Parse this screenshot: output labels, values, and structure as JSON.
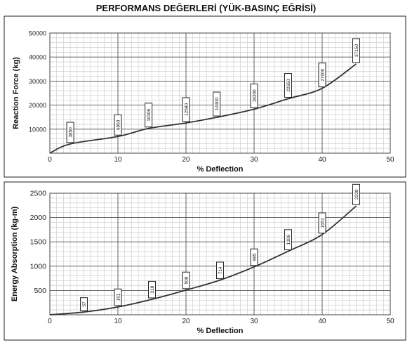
{
  "page": {
    "title": "PERFORMANS DEĞERLERİ (YÜK-BASINÇ EĞRİSİ)"
  },
  "chart_data": [
    {
      "type": "line",
      "xlabel": "% Deflection",
      "ylabel": "Reaction Force (kg)",
      "xlim": [
        0,
        50
      ],
      "ylim": [
        0,
        50000
      ],
      "xticks": [
        "0",
        "10",
        "20",
        "30",
        "40",
        "50"
      ],
      "yticks": [
        "10000",
        "20000",
        "30000",
        "40000",
        "50000"
      ],
      "grid": true,
      "series": [
        {
          "x": [
            0,
            3,
            10,
            14.5,
            20,
            24.5,
            30,
            35,
            40,
            45
          ],
          "values": [
            0,
            3850,
            6950,
            10300,
            12580,
            14900,
            18300,
            22650,
            27000,
            37150
          ]
        }
      ],
      "annotations": [
        {
          "x": 3,
          "y": 3850,
          "label": "3850"
        },
        {
          "x": 10,
          "y": 6950,
          "label": "6950"
        },
        {
          "x": 14.5,
          "y": 10300,
          "label": "10300"
        },
        {
          "x": 20,
          "y": 12580,
          "label": "12580"
        },
        {
          "x": 24.5,
          "y": 14900,
          "label": "14900"
        },
        {
          "x": 30,
          "y": 18300,
          "label": "18300"
        },
        {
          "x": 35,
          "y": 22650,
          "label": "22650"
        },
        {
          "x": 40,
          "y": 27000,
          "label": "27000"
        },
        {
          "x": 45,
          "y": 37150,
          "label": "37150"
        }
      ]
    },
    {
      "type": "line",
      "xlabel": "% Deflection",
      "ylabel": "Energy Absorption (kg-m)",
      "xlim": [
        0,
        50
      ],
      "ylim": [
        0,
        2500
      ],
      "xticks": [
        "0",
        "10",
        "20",
        "30",
        "40",
        "50"
      ],
      "yticks": [
        "500",
        "1000",
        "1500",
        "2000",
        "2500"
      ],
      "grid": true,
      "series": [
        {
          "x": [
            0,
            5,
            10,
            15,
            20,
            25,
            30,
            35,
            40,
            45
          ],
          "values": [
            0,
            57,
            161,
            318,
            508,
            714,
            985,
            1306,
            1651,
            2238
          ]
        }
      ],
      "annotations": [
        {
          "x": 5,
          "y": 57,
          "label": "57"
        },
        {
          "x": 10,
          "y": 161,
          "label": "161"
        },
        {
          "x": 15,
          "y": 318,
          "label": "318"
        },
        {
          "x": 20,
          "y": 508,
          "label": "508"
        },
        {
          "x": 25,
          "y": 714,
          "label": "714"
        },
        {
          "x": 30,
          "y": 985,
          "label": "985"
        },
        {
          "x": 35,
          "y": 1306,
          "label": "1306"
        },
        {
          "x": 40,
          "y": 1651,
          "label": "1651"
        },
        {
          "x": 45,
          "y": 2238,
          "label": "2238"
        }
      ]
    }
  ]
}
